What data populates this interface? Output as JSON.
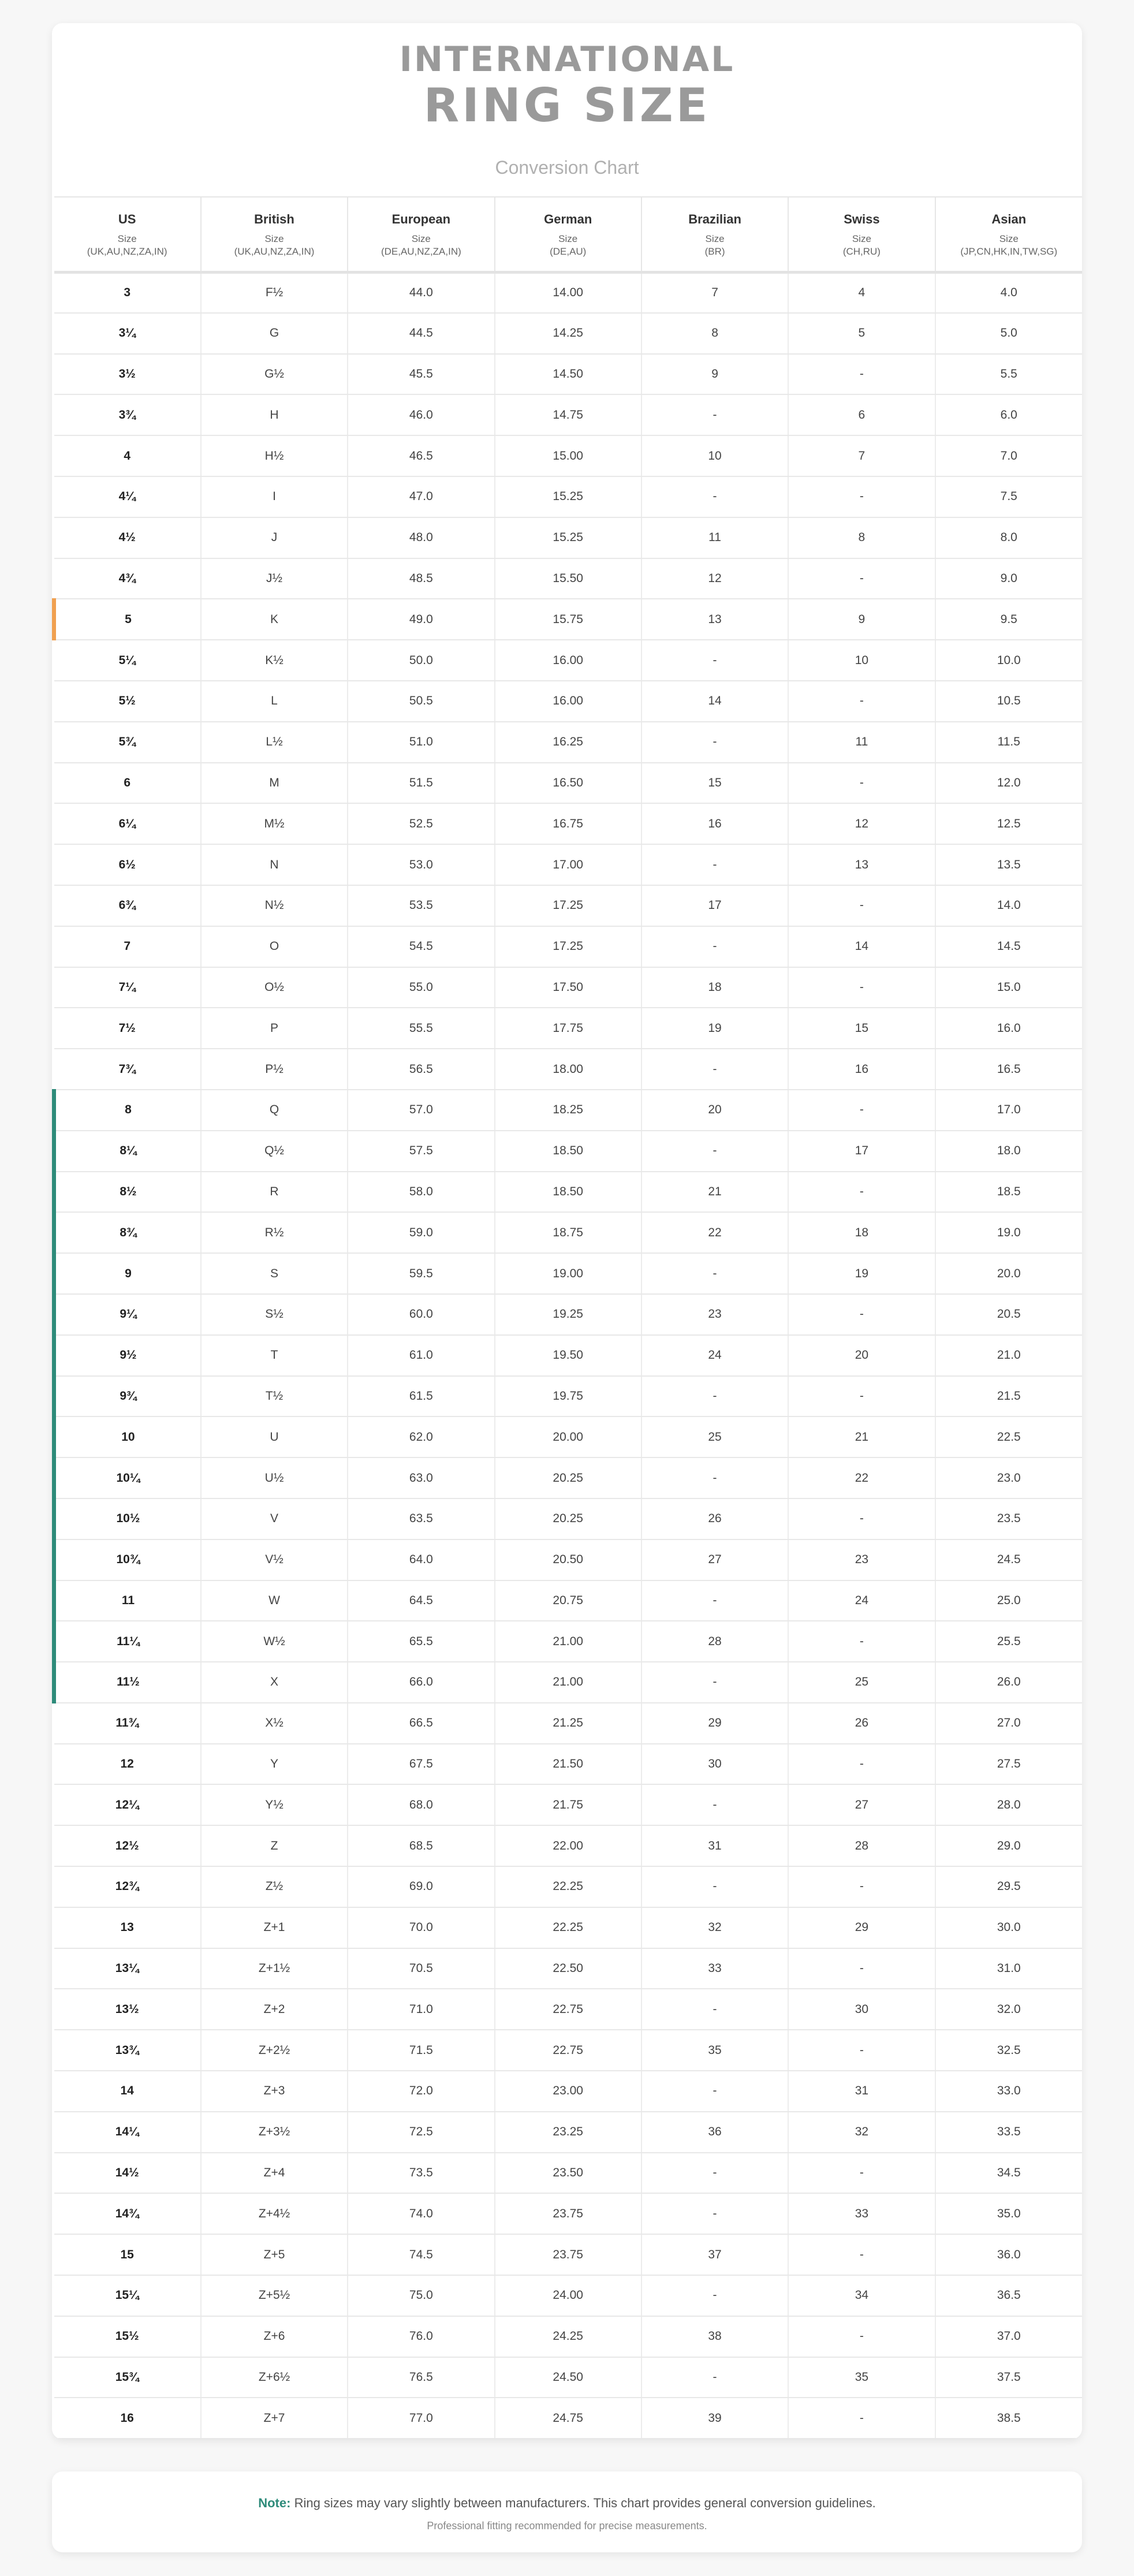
{
  "header": {
    "line1": "INTERNATIONAL",
    "line2": "RING SIZE",
    "subtitle": "Conversion Chart"
  },
  "columns": [
    {
      "name": "US",
      "size_label": "Size",
      "regions": "(UK,AU,NZ,ZA,IN)"
    },
    {
      "name": "British",
      "size_label": "Size",
      "regions": "(UK,AU,NZ,ZA,IN)"
    },
    {
      "name": "European",
      "size_label": "Size",
      "regions": "(DE,AU,NZ,ZA,IN)"
    },
    {
      "name": "German",
      "size_label": "Size",
      "regions": "(DE,AU)"
    },
    {
      "name": "Brazilian",
      "size_label": "Size",
      "regions": "(BR)"
    },
    {
      "name": "Swiss",
      "size_label": "Size",
      "regions": "(CH,RU)"
    },
    {
      "name": "Asian",
      "size_label": "Size",
      "regions": "(JP,CN,HK,IN,TW,SG)"
    }
  ],
  "row_markers": {
    "orange": "#f0a050",
    "teal": "#2e8b7a"
  },
  "rows": [
    {
      "us": "3",
      "british": "F½",
      "european": "44.0",
      "german": "14.00",
      "brazilian": "7",
      "swiss": "4",
      "asian": "4.0",
      "marker": ""
    },
    {
      "us": "3¼",
      "british": "G",
      "european": "44.5",
      "german": "14.25",
      "brazilian": "8",
      "swiss": "5",
      "asian": "5.0",
      "marker": ""
    },
    {
      "us": "3½",
      "british": "G½",
      "european": "45.5",
      "german": "14.50",
      "brazilian": "9",
      "swiss": "-",
      "asian": "5.5",
      "marker": ""
    },
    {
      "us": "3¾",
      "british": "H",
      "european": "46.0",
      "german": "14.75",
      "brazilian": "-",
      "swiss": "6",
      "asian": "6.0",
      "marker": ""
    },
    {
      "us": "4",
      "british": "H½",
      "european": "46.5",
      "german": "15.00",
      "brazilian": "10",
      "swiss": "7",
      "asian": "7.0",
      "marker": ""
    },
    {
      "us": "4¼",
      "british": "I",
      "european": "47.0",
      "german": "15.25",
      "brazilian": "-",
      "swiss": "-",
      "asian": "7.5",
      "marker": ""
    },
    {
      "us": "4½",
      "british": "J",
      "european": "48.0",
      "german": "15.25",
      "brazilian": "11",
      "swiss": "8",
      "asian": "8.0",
      "marker": ""
    },
    {
      "us": "4¾",
      "british": "J½",
      "european": "48.5",
      "german": "15.50",
      "brazilian": "12",
      "swiss": "-",
      "asian": "9.0",
      "marker": ""
    },
    {
      "us": "5",
      "british": "K",
      "european": "49.0",
      "german": "15.75",
      "brazilian": "13",
      "swiss": "9",
      "asian": "9.5",
      "marker": "orange"
    },
    {
      "us": "5¼",
      "british": "K½",
      "european": "50.0",
      "german": "16.00",
      "brazilian": "-",
      "swiss": "10",
      "asian": "10.0",
      "marker": ""
    },
    {
      "us": "5½",
      "british": "L",
      "european": "50.5",
      "german": "16.00",
      "brazilian": "14",
      "swiss": "-",
      "asian": "10.5",
      "marker": ""
    },
    {
      "us": "5¾",
      "british": "L½",
      "european": "51.0",
      "german": "16.25",
      "brazilian": "-",
      "swiss": "11",
      "asian": "11.5",
      "marker": ""
    },
    {
      "us": "6",
      "british": "M",
      "european": "51.5",
      "german": "16.50",
      "brazilian": "15",
      "swiss": "-",
      "asian": "12.0",
      "marker": ""
    },
    {
      "us": "6¼",
      "british": "M½",
      "european": "52.5",
      "german": "16.75",
      "brazilian": "16",
      "swiss": "12",
      "asian": "12.5",
      "marker": ""
    },
    {
      "us": "6½",
      "british": "N",
      "european": "53.0",
      "german": "17.00",
      "brazilian": "-",
      "swiss": "13",
      "asian": "13.5",
      "marker": ""
    },
    {
      "us": "6¾",
      "british": "N½",
      "european": "53.5",
      "german": "17.25",
      "brazilian": "17",
      "swiss": "-",
      "asian": "14.0",
      "marker": ""
    },
    {
      "us": "7",
      "british": "O",
      "european": "54.5",
      "german": "17.25",
      "brazilian": "-",
      "swiss": "14",
      "asian": "14.5",
      "marker": ""
    },
    {
      "us": "7¼",
      "british": "O½",
      "european": "55.0",
      "german": "17.50",
      "brazilian": "18",
      "swiss": "-",
      "asian": "15.0",
      "marker": ""
    },
    {
      "us": "7½",
      "british": "P",
      "european": "55.5",
      "german": "17.75",
      "brazilian": "19",
      "swiss": "15",
      "asian": "16.0",
      "marker": ""
    },
    {
      "us": "7¾",
      "british": "P½",
      "european": "56.5",
      "german": "18.00",
      "brazilian": "-",
      "swiss": "16",
      "asian": "16.5",
      "marker": ""
    },
    {
      "us": "8",
      "british": "Q",
      "european": "57.0",
      "german": "18.25",
      "brazilian": "20",
      "swiss": "-",
      "asian": "17.0",
      "marker": "teal"
    },
    {
      "us": "8¼",
      "british": "Q½",
      "european": "57.5",
      "german": "18.50",
      "brazilian": "-",
      "swiss": "17",
      "asian": "18.0",
      "marker": "teal"
    },
    {
      "us": "8½",
      "british": "R",
      "european": "58.0",
      "german": "18.50",
      "brazilian": "21",
      "swiss": "-",
      "asian": "18.5",
      "marker": "teal"
    },
    {
      "us": "8¾",
      "british": "R½",
      "european": "59.0",
      "german": "18.75",
      "brazilian": "22",
      "swiss": "18",
      "asian": "19.0",
      "marker": "teal"
    },
    {
      "us": "9",
      "british": "S",
      "european": "59.5",
      "german": "19.00",
      "brazilian": "-",
      "swiss": "19",
      "asian": "20.0",
      "marker": "teal"
    },
    {
      "us": "9¼",
      "british": "S½",
      "european": "60.0",
      "german": "19.25",
      "brazilian": "23",
      "swiss": "-",
      "asian": "20.5",
      "marker": "teal"
    },
    {
      "us": "9½",
      "british": "T",
      "european": "61.0",
      "german": "19.50",
      "brazilian": "24",
      "swiss": "20",
      "asian": "21.0",
      "marker": "teal"
    },
    {
      "us": "9¾",
      "british": "T½",
      "european": "61.5",
      "german": "19.75",
      "brazilian": "-",
      "swiss": "-",
      "asian": "21.5",
      "marker": "teal"
    },
    {
      "us": "10",
      "british": "U",
      "european": "62.0",
      "german": "20.00",
      "brazilian": "25",
      "swiss": "21",
      "asian": "22.5",
      "marker": "teal"
    },
    {
      "us": "10¼",
      "british": "U½",
      "european": "63.0",
      "german": "20.25",
      "brazilian": "-",
      "swiss": "22",
      "asian": "23.0",
      "marker": "teal"
    },
    {
      "us": "10½",
      "british": "V",
      "european": "63.5",
      "german": "20.25",
      "brazilian": "26",
      "swiss": "-",
      "asian": "23.5",
      "marker": "teal"
    },
    {
      "us": "10¾",
      "british": "V½",
      "european": "64.0",
      "german": "20.50",
      "brazilian": "27",
      "swiss": "23",
      "asian": "24.5",
      "marker": "teal"
    },
    {
      "us": "11",
      "british": "W",
      "european": "64.5",
      "german": "20.75",
      "brazilian": "-",
      "swiss": "24",
      "asian": "25.0",
      "marker": "teal"
    },
    {
      "us": "11¼",
      "british": "W½",
      "european": "65.5",
      "german": "21.00",
      "brazilian": "28",
      "swiss": "-",
      "asian": "25.5",
      "marker": "teal"
    },
    {
      "us": "11½",
      "british": "X",
      "european": "66.0",
      "german": "21.00",
      "brazilian": "-",
      "swiss": "25",
      "asian": "26.0",
      "marker": "teal"
    },
    {
      "us": "11¾",
      "british": "X½",
      "european": "66.5",
      "german": "21.25",
      "brazilian": "29",
      "swiss": "26",
      "asian": "27.0",
      "marker": ""
    },
    {
      "us": "12",
      "british": "Y",
      "european": "67.5",
      "german": "21.50",
      "brazilian": "30",
      "swiss": "-",
      "asian": "27.5",
      "marker": ""
    },
    {
      "us": "12¼",
      "british": "Y½",
      "european": "68.0",
      "german": "21.75",
      "brazilian": "-",
      "swiss": "27",
      "asian": "28.0",
      "marker": ""
    },
    {
      "us": "12½",
      "british": "Z",
      "european": "68.5",
      "german": "22.00",
      "brazilian": "31",
      "swiss": "28",
      "asian": "29.0",
      "marker": ""
    },
    {
      "us": "12¾",
      "british": "Z½",
      "european": "69.0",
      "german": "22.25",
      "brazilian": "-",
      "swiss": "-",
      "asian": "29.5",
      "marker": ""
    },
    {
      "us": "13",
      "british": "Z+1",
      "european": "70.0",
      "german": "22.25",
      "brazilian": "32",
      "swiss": "29",
      "asian": "30.0",
      "marker": ""
    },
    {
      "us": "13¼",
      "british": "Z+1½",
      "european": "70.5",
      "german": "22.50",
      "brazilian": "33",
      "swiss": "-",
      "asian": "31.0",
      "marker": ""
    },
    {
      "us": "13½",
      "british": "Z+2",
      "european": "71.0",
      "german": "22.75",
      "brazilian": "-",
      "swiss": "30",
      "asian": "32.0",
      "marker": ""
    },
    {
      "us": "13¾",
      "british": "Z+2½",
      "european": "71.5",
      "german": "22.75",
      "brazilian": "35",
      "swiss": "-",
      "asian": "32.5",
      "marker": ""
    },
    {
      "us": "14",
      "british": "Z+3",
      "european": "72.0",
      "german": "23.00",
      "brazilian": "-",
      "swiss": "31",
      "asian": "33.0",
      "marker": ""
    },
    {
      "us": "14¼",
      "british": "Z+3½",
      "european": "72.5",
      "german": "23.25",
      "brazilian": "36",
      "swiss": "32",
      "asian": "33.5",
      "marker": ""
    },
    {
      "us": "14½",
      "british": "Z+4",
      "european": "73.5",
      "german": "23.50",
      "brazilian": "-",
      "swiss": "-",
      "asian": "34.5",
      "marker": ""
    },
    {
      "us": "14¾",
      "british": "Z+4½",
      "european": "74.0",
      "german": "23.75",
      "brazilian": "-",
      "swiss": "33",
      "asian": "35.0",
      "marker": ""
    },
    {
      "us": "15",
      "british": "Z+5",
      "european": "74.5",
      "german": "23.75",
      "brazilian": "37",
      "swiss": "-",
      "asian": "36.0",
      "marker": ""
    },
    {
      "us": "15¼",
      "british": "Z+5½",
      "european": "75.0",
      "german": "24.00",
      "brazilian": "-",
      "swiss": "34",
      "asian": "36.5",
      "marker": ""
    },
    {
      "us": "15½",
      "british": "Z+6",
      "european": "76.0",
      "german": "24.25",
      "brazilian": "38",
      "swiss": "-",
      "asian": "37.0",
      "marker": ""
    },
    {
      "us": "15¾",
      "british": "Z+6½",
      "european": "76.5",
      "german": "24.50",
      "brazilian": "-",
      "swiss": "35",
      "asian": "37.5",
      "marker": ""
    },
    {
      "us": "16",
      "british": "Z+7",
      "european": "77.0",
      "german": "24.75",
      "brazilian": "39",
      "swiss": "-",
      "asian": "38.5",
      "marker": ""
    }
  ],
  "note": {
    "label": "Note:",
    "text": " Ring sizes may vary slightly between manufacturers. This chart provides general conversion guidelines.",
    "subtext": "Professional fitting recommended for precise measurements."
  }
}
